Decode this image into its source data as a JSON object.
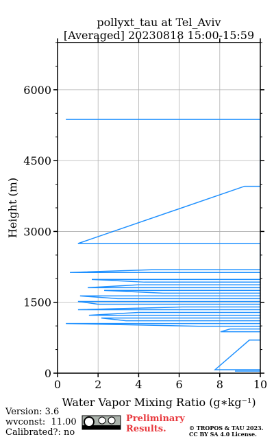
{
  "chart_data": {
    "type": "line",
    "title": "pollyxt_tau at Tel_Aviv",
    "subtitle": "[Averaged] 20230818 15:00-15:59",
    "xlabel": "Water Vapor Mixing Ratio (g∗kg⁻¹)",
    "ylabel": "Height (m)",
    "xlim": [
      0,
      10
    ],
    "ylim": [
      0,
      7000
    ],
    "xticks": [
      0,
      2,
      4,
      6,
      8,
      10
    ],
    "yticks": [
      0,
      1500,
      3000,
      4500,
      6000
    ],
    "yminor_ticks": [
      500,
      1000,
      2000,
      2500,
      3500,
      4000,
      5000,
      5500,
      6500,
      7000
    ],
    "grid": true,
    "series": [
      {
        "color": "#1e90ff",
        "x": [
          8.75,
          10,
          10,
          7.77,
          9.46,
          10,
          10,
          8.04,
          8.51,
          10,
          10,
          6.96,
          0.41,
          10,
          10,
          3.38,
          2.16,
          10,
          10,
          1.55,
          3.99,
          10,
          10,
          1.01,
          6.15,
          10,
          10,
          1.99,
          1.01,
          10,
          10,
          2.97,
          1.11,
          10,
          10,
          5.2,
          2.3,
          10,
          10,
          1.49,
          3.95,
          10,
          10,
          4.29,
          1.69,
          10,
          10,
          0.61,
          4.63,
          10,
          10,
          1.01,
          9.22,
          10,
          10,
          0.41
        ],
        "values": [
          44,
          44,
          73,
          73,
          700,
          700,
          876,
          876,
          934,
          934,
          993,
          993,
          1051,
          1051,
          1109,
          1109,
          1168,
          1168,
          1226,
          1226,
          1285,
          1285,
          1343,
          1343,
          1401,
          1401,
          1460,
          1460,
          1518,
          1518,
          1577,
          1577,
          1635,
          1635,
          1693,
          1693,
          1752,
          1752,
          1810,
          1810,
          1869,
          1869,
          1927,
          1927,
          1985,
          1985,
          2131,
          2131,
          2190,
          2190,
          2745,
          2745,
          3956,
          3956,
          5372,
          5372
        ]
      }
    ],
    "annotations": [
      "Version: 3.6",
      "wvconst:  11.00",
      "Calibrated?: no"
    ],
    "stamp": [
      "Preliminary",
      "Results."
    ],
    "license": [
      "© TROPOS & TAU 2023.",
      "CC BY SA 4.0 License."
    ]
  }
}
